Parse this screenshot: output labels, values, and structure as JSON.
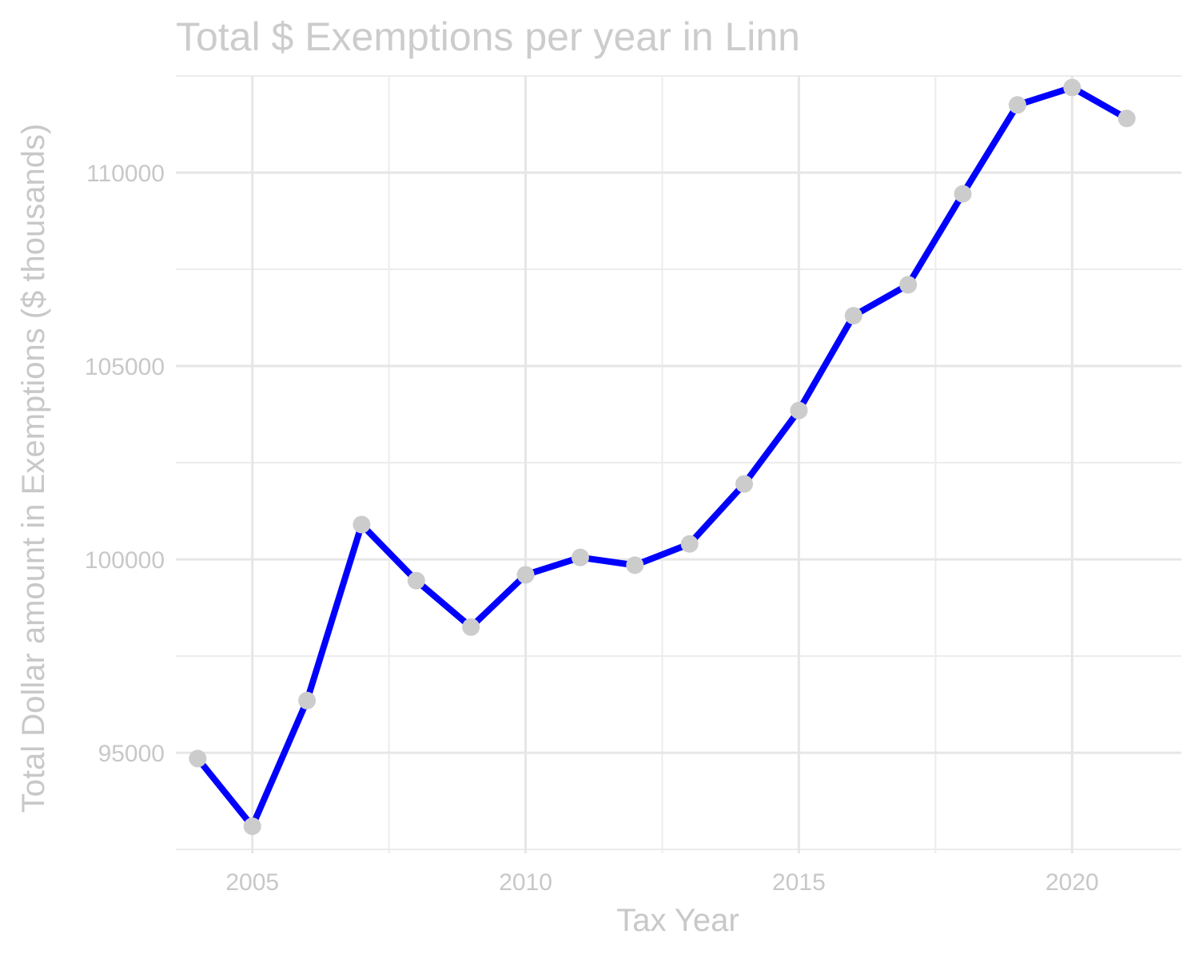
{
  "chart_data": {
    "type": "line",
    "title": "Total $ Exemptions per year in Linn",
    "xlabel": "Tax Year",
    "ylabel": "Total Dollar amount in Exemptions ($ thousands)",
    "x": [
      2004,
      2005,
      2006,
      2007,
      2008,
      2009,
      2010,
      2011,
      2012,
      2013,
      2014,
      2015,
      2016,
      2017,
      2018,
      2019,
      2020,
      2021
    ],
    "series": [
      {
        "values": [
          94850,
          93100,
          96350,
          100900,
          99450,
          98250,
          99600,
          100050,
          99850,
          100400,
          101950,
          103850,
          106300,
          107100,
          109450,
          111750,
          112200,
          111400
        ]
      }
    ],
    "xlim": [
      2003.6,
      2022.0
    ],
    "ylim": [
      92400,
      112500
    ],
    "x_ticks": [
      2005,
      2010,
      2015,
      2020
    ],
    "x_tick_labels": [
      "2005",
      "2010",
      "2015",
      "2020"
    ],
    "y_ticks": [
      95000,
      100000,
      105000,
      110000
    ],
    "y_tick_labels": [
      "95000",
      "100000",
      "105000",
      "110000"
    ],
    "grid": true,
    "legend": "none",
    "colors": {
      "line": "#0000ff",
      "points": "#cccccc",
      "grid": "#e6e6e6",
      "text": "#c8c8c8"
    }
  }
}
